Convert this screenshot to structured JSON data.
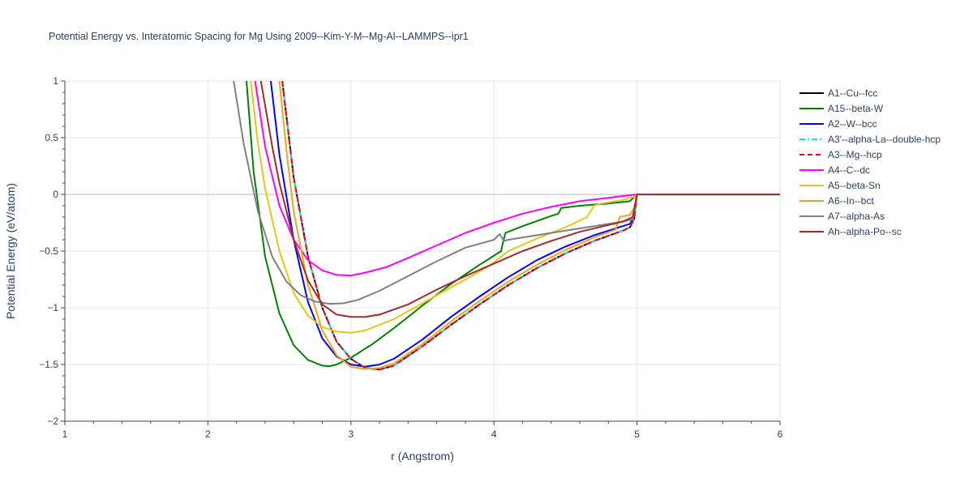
{
  "chart_data": {
    "type": "line",
    "title": "Potential Energy vs. Interatomic Spacing for Mg Using 2009--Kim-Y-M--Mg-Al--LAMMPS--ipr1",
    "xlabel": "r (Angstrom)",
    "ylabel": "Potential Energy (eV/atom)",
    "xlim": [
      1,
      6
    ],
    "ylim": [
      -2,
      1
    ],
    "xticks": [
      1,
      2,
      3,
      4,
      5,
      6
    ],
    "yticks": [
      1,
      0.5,
      0,
      -0.5,
      -1,
      -1.5,
      -2
    ],
    "xtick_labels": [
      "1",
      "2",
      "3",
      "4",
      "5",
      "6"
    ],
    "ytick_labels": [
      "1",
      "0.5",
      "0",
      "−0.5",
      "−1",
      "−1.5",
      "−2"
    ],
    "grid": true,
    "legend_position": "right",
    "series": [
      {
        "name": "A1--Cu--fcc",
        "color": "#000000",
        "dash": "solid",
        "x": [
          2.52,
          2.6,
          2.7,
          2.8,
          2.9,
          3.0,
          3.1,
          3.2,
          3.3,
          3.5,
          3.7,
          3.9,
          4.1,
          4.3,
          4.5,
          4.7,
          4.9,
          4.95,
          4.98,
          5.0,
          5.5,
          6.0
        ],
        "y": [
          1.0,
          0.15,
          -0.55,
          -1.0,
          -1.3,
          -1.45,
          -1.53,
          -1.545,
          -1.51,
          -1.34,
          -1.15,
          -0.97,
          -0.8,
          -0.65,
          -0.52,
          -0.41,
          -0.32,
          -0.29,
          -0.22,
          0.0,
          0.0,
          0.0
        ]
      },
      {
        "name": "A15--beta-W",
        "color": "#008000",
        "dash": "solid",
        "x": [
          2.27,
          2.32,
          2.4,
          2.5,
          2.6,
          2.7,
          2.8,
          2.85,
          2.9,
          3.0,
          3.15,
          3.3,
          3.5,
          3.7,
          3.9,
          4.0,
          4.05,
          4.06,
          4.08,
          4.2,
          4.4,
          4.45,
          4.47,
          4.6,
          4.8,
          4.95,
          5.0,
          5.5,
          6.0
        ],
        "y": [
          1.0,
          0.2,
          -0.55,
          -1.05,
          -1.33,
          -1.46,
          -1.51,
          -1.515,
          -1.5,
          -1.44,
          -1.32,
          -1.18,
          -0.98,
          -0.79,
          -0.62,
          -0.54,
          -0.5,
          -0.44,
          -0.34,
          -0.28,
          -0.19,
          -0.17,
          -0.12,
          -0.1,
          -0.08,
          -0.06,
          0.0,
          0.0,
          0.0
        ]
      },
      {
        "name": "A2--W--bcc",
        "color": "#0000ff",
        "dash": "solid",
        "x": [
          2.44,
          2.5,
          2.6,
          2.7,
          2.8,
          2.9,
          3.0,
          3.1,
          3.2,
          3.3,
          3.5,
          3.7,
          3.9,
          4.1,
          4.3,
          4.5,
          4.7,
          4.9,
          4.95,
          4.98,
          5.0,
          5.5,
          6.0
        ],
        "y": [
          1.0,
          0.35,
          -0.4,
          -0.95,
          -1.27,
          -1.43,
          -1.5,
          -1.52,
          -1.5,
          -1.45,
          -1.28,
          -1.08,
          -0.9,
          -0.73,
          -0.58,
          -0.46,
          -0.36,
          -0.28,
          -0.26,
          -0.2,
          0.0,
          0.0,
          0.0
        ]
      },
      {
        "name": "A3'--alpha-La--double-hcp",
        "color": "#00e5ee",
        "dash": "dashdot",
        "x": [
          2.52,
          2.6,
          2.7,
          2.8,
          2.9,
          3.0,
          3.1,
          3.2,
          3.3,
          3.5,
          3.7,
          3.9,
          4.1,
          4.3,
          4.5,
          4.7,
          4.9,
          4.95,
          4.98,
          5.0,
          5.5,
          6.0
        ],
        "y": [
          1.0,
          0.15,
          -0.55,
          -1.0,
          -1.3,
          -1.45,
          -1.53,
          -1.545,
          -1.51,
          -1.34,
          -1.15,
          -0.97,
          -0.8,
          -0.65,
          -0.52,
          -0.41,
          -0.32,
          -0.29,
          -0.22,
          0.0,
          0.0,
          0.0
        ]
      },
      {
        "name": "A3--Mg--hcp",
        "color": "#ff0000",
        "dash": "dash",
        "x": [
          2.52,
          2.6,
          2.7,
          2.8,
          2.9,
          3.0,
          3.1,
          3.2,
          3.3,
          3.5,
          3.7,
          3.9,
          4.1,
          4.3,
          4.5,
          4.7,
          4.9,
          4.95,
          4.98,
          5.0,
          5.5,
          6.0
        ],
        "y": [
          1.0,
          0.15,
          -0.55,
          -1.0,
          -1.3,
          -1.45,
          -1.53,
          -1.545,
          -1.51,
          -1.34,
          -1.15,
          -0.97,
          -0.8,
          -0.65,
          -0.52,
          -0.41,
          -0.32,
          -0.29,
          -0.22,
          0.0,
          0.0,
          0.0
        ]
      },
      {
        "name": "A4--C--dc",
        "color": "#ff00ff",
        "dash": "solid",
        "x": [
          2.33,
          2.4,
          2.5,
          2.6,
          2.7,
          2.8,
          2.9,
          3.0,
          3.1,
          3.25,
          3.4,
          3.6,
          3.8,
          4.0,
          4.2,
          4.4,
          4.6,
          4.8,
          5.0,
          5.5,
          6.0
        ],
        "y": [
          1.0,
          0.42,
          -0.1,
          -0.4,
          -0.58,
          -0.67,
          -0.71,
          -0.715,
          -0.69,
          -0.64,
          -0.56,
          -0.45,
          -0.34,
          -0.25,
          -0.17,
          -0.11,
          -0.06,
          -0.03,
          0.0,
          0.0,
          0.0
        ]
      },
      {
        "name": "A5--beta-Sn",
        "color": "#e6c51a",
        "dash": "solid",
        "x": [
          2.3,
          2.35,
          2.4,
          2.5,
          2.6,
          2.7,
          2.8,
          2.9,
          3.0,
          3.1,
          3.2,
          3.3,
          3.5,
          3.7,
          3.9,
          4.0,
          4.1,
          4.3,
          4.5,
          4.65,
          4.7,
          4.75,
          4.9,
          4.98,
          5.0,
          5.5,
          6.0
        ],
        "y": [
          1.0,
          0.45,
          0.05,
          -0.5,
          -0.87,
          -1.07,
          -1.17,
          -1.21,
          -1.22,
          -1.2,
          -1.15,
          -1.1,
          -0.96,
          -0.82,
          -0.68,
          -0.6,
          -0.5,
          -0.39,
          -0.29,
          -0.2,
          -0.1,
          -0.08,
          -0.05,
          -0.02,
          0.0,
          0.0,
          0.0
        ]
      },
      {
        "name": "A6--In--bct",
        "color": "#f2a324",
        "dash": "solid",
        "x": [
          2.5,
          2.55,
          2.6,
          2.7,
          2.8,
          2.9,
          3.0,
          3.1,
          3.2,
          3.3,
          3.5,
          3.7,
          3.9,
          4.1,
          4.3,
          4.5,
          4.7,
          4.85,
          4.88,
          4.95,
          4.98,
          5.0,
          5.5,
          6.0
        ],
        "y": [
          1.0,
          0.38,
          -0.15,
          -0.8,
          -1.2,
          -1.42,
          -1.52,
          -1.54,
          -1.53,
          -1.49,
          -1.32,
          -1.12,
          -0.94,
          -0.77,
          -0.62,
          -0.49,
          -0.38,
          -0.31,
          -0.2,
          -0.18,
          -0.12,
          0.0,
          0.0,
          0.0
        ]
      },
      {
        "name": "A7--alpha-As",
        "color": "#808080",
        "dash": "solid",
        "x": [
          2.18,
          2.25,
          2.35,
          2.45,
          2.55,
          2.65,
          2.75,
          2.85,
          2.95,
          3.05,
          3.2,
          3.4,
          3.6,
          3.8,
          4.0,
          4.04,
          4.07,
          4.1,
          4.3,
          4.5,
          4.7,
          4.9,
          4.97,
          5.0,
          5.5,
          6.0
        ],
        "y": [
          1.0,
          0.45,
          -0.15,
          -0.55,
          -0.77,
          -0.89,
          -0.945,
          -0.965,
          -0.96,
          -0.93,
          -0.85,
          -0.72,
          -0.59,
          -0.47,
          -0.4,
          -0.35,
          -0.41,
          -0.4,
          -0.36,
          -0.32,
          -0.28,
          -0.24,
          -0.22,
          0.0,
          0.0,
          0.0
        ]
      },
      {
        "name": "Ah--alpha-Po--sc",
        "color": "#a52a2a",
        "dash": "solid",
        "x": [
          2.37,
          2.45,
          2.5,
          2.6,
          2.7,
          2.8,
          2.9,
          3.0,
          3.1,
          3.2,
          3.4,
          3.6,
          3.8,
          4.0,
          4.2,
          4.4,
          4.6,
          4.8,
          4.9,
          4.97,
          5.0,
          5.5,
          6.0
        ],
        "y": [
          1.0,
          0.42,
          0.1,
          -0.4,
          -0.76,
          -0.97,
          -1.06,
          -1.08,
          -1.08,
          -1.06,
          -0.97,
          -0.84,
          -0.72,
          -0.61,
          -0.5,
          -0.41,
          -0.33,
          -0.27,
          -0.24,
          -0.2,
          0.0,
          0.0,
          0.0
        ]
      }
    ]
  }
}
